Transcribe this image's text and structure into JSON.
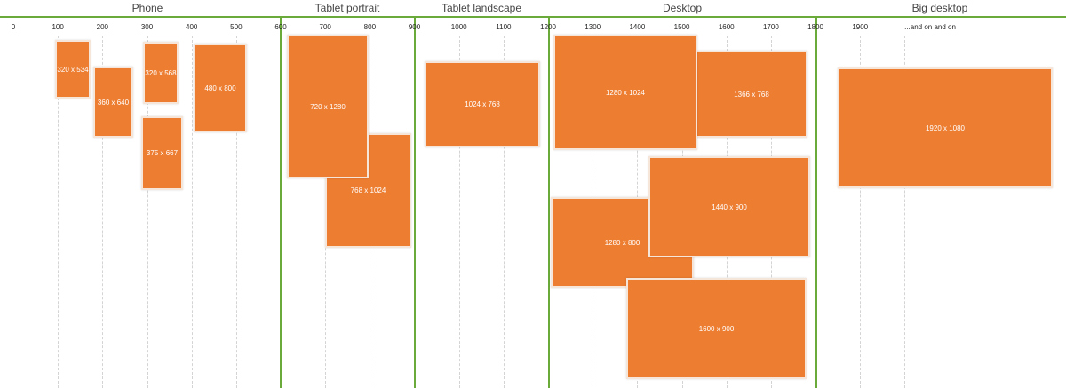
{
  "header": {
    "sections": [
      "Phone",
      "Tablet portrait",
      "Tablet landscape",
      "Desktop",
      "Big desktop"
    ]
  },
  "ruler": {
    "ticks": [
      "0",
      "100",
      "200",
      "300",
      "400",
      "500",
      "600",
      "700",
      "800",
      "900",
      "1000",
      "1100",
      "1200",
      "1300",
      "1400",
      "1500",
      "1600",
      "1700",
      "1800",
      "1900",
      "...and on and on"
    ]
  },
  "boxes": [
    {
      "label": "320 x 534"
    },
    {
      "label": "360 x 640"
    },
    {
      "label": "320 x 568"
    },
    {
      "label": "375 x 667"
    },
    {
      "label": "480 x 800"
    },
    {
      "label": "768 x 1024"
    },
    {
      "label": "720 x 1280"
    },
    {
      "label": "1024 x 768"
    },
    {
      "label": "1366 x 768"
    },
    {
      "label": "1280 x 1024"
    },
    {
      "label": "1280 x 800"
    },
    {
      "label": "1440 x 900"
    },
    {
      "label": "1600 x 900"
    },
    {
      "label": "1920 x 1080"
    }
  ]
}
